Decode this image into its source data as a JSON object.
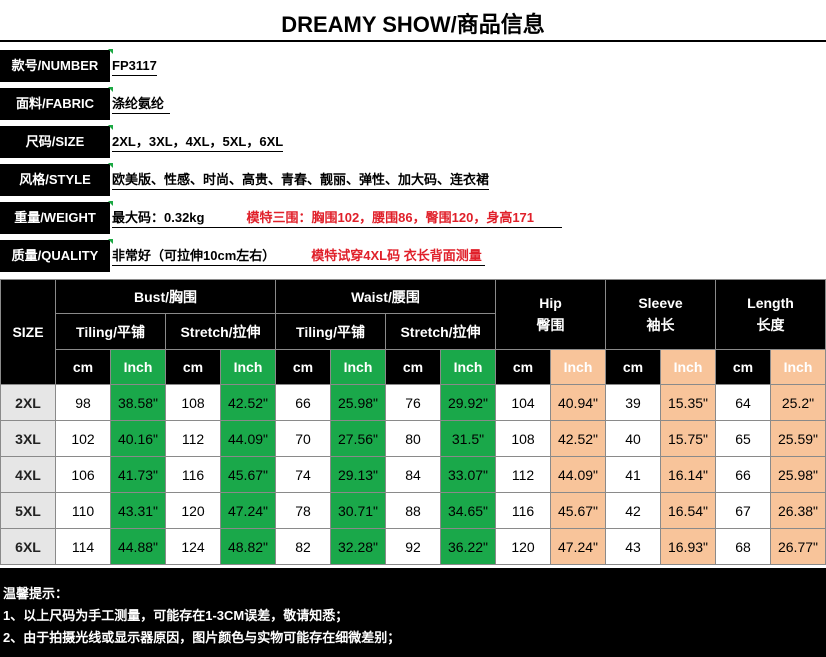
{
  "title": "DREAMY SHOW/商品信息",
  "info": {
    "number": {
      "label": "款号/NUMBER",
      "value": "FP3117"
    },
    "fabric": {
      "label": "面料/FABRIC",
      "value": "涤纶氨纶"
    },
    "size": {
      "label": "尺码/SIZE",
      "value": "2XL，3XL，4XL，5XL，6XL"
    },
    "style": {
      "label": "风格/STYLE",
      "value": "欧美版、性感、时尚、高贵、青春、靓丽、弹性、加大码、连衣裙"
    },
    "weight": {
      "label": "重量/WEIGHT",
      "value": "最大码：0.32kg",
      "note": "模特三围：胸围102，腰围86，臀围120，身高171"
    },
    "quality": {
      "label": "质量/QUALITY",
      "value": "非常好（可拉伸10cm左右）",
      "note": "模特试穿4XL码  衣长背面测量"
    }
  },
  "table": {
    "size_header": "SIZE",
    "bust": "Bust/胸围",
    "waist": "Waist/腰围",
    "hip": "Hip",
    "hip_cn": "臀围",
    "sleeve": "Sleeve",
    "sleeve_cn": "袖长",
    "length": "Length",
    "length_cn": "长度",
    "tiling": "Tiling/平铺",
    "stretch": "Stretch/拉伸",
    "cm": "cm",
    "inch": "Inch",
    "rows": [
      {
        "size": "2XL",
        "vals": [
          "98",
          "38.58\"",
          "108",
          "42.52\"",
          "66",
          "25.98\"",
          "76",
          "29.92\"",
          "104",
          "40.94\"",
          "39",
          "15.35\"",
          "64",
          "25.2\""
        ]
      },
      {
        "size": "3XL",
        "vals": [
          "102",
          "40.16\"",
          "112",
          "44.09\"",
          "70",
          "27.56\"",
          "80",
          "31.5\"",
          "108",
          "42.52\"",
          "40",
          "15.75\"",
          "65",
          "25.59\""
        ]
      },
      {
        "size": "4XL",
        "vals": [
          "106",
          "41.73\"",
          "116",
          "45.67\"",
          "74",
          "29.13\"",
          "84",
          "33.07\"",
          "112",
          "44.09\"",
          "41",
          "16.14\"",
          "66",
          "25.98\""
        ]
      },
      {
        "size": "5XL",
        "vals": [
          "110",
          "43.31\"",
          "120",
          "47.24\"",
          "78",
          "30.71\"",
          "88",
          "34.65\"",
          "116",
          "45.67\"",
          "42",
          "16.54\"",
          "67",
          "26.38\""
        ]
      },
      {
        "size": "6XL",
        "vals": [
          "114",
          "44.88\"",
          "124",
          "48.82\"",
          "82",
          "32.28\"",
          "92",
          "36.22\"",
          "120",
          "47.24\"",
          "43",
          "16.93\"",
          "68",
          "26.77\""
        ]
      }
    ]
  },
  "notes": {
    "heading": "温馨提示：",
    "line1": "1、以上尺码为手工测量，可能存在1-3CM误差，敬请知悉；",
    "line2": "2、由于拍摄光线或显示器原因，图片颜色与实物可能存在细微差别；"
  },
  "colors": {
    "green": "#1aa84a",
    "peach": "#f8c49a",
    "red": "#e0202a",
    "black": "#000000"
  }
}
